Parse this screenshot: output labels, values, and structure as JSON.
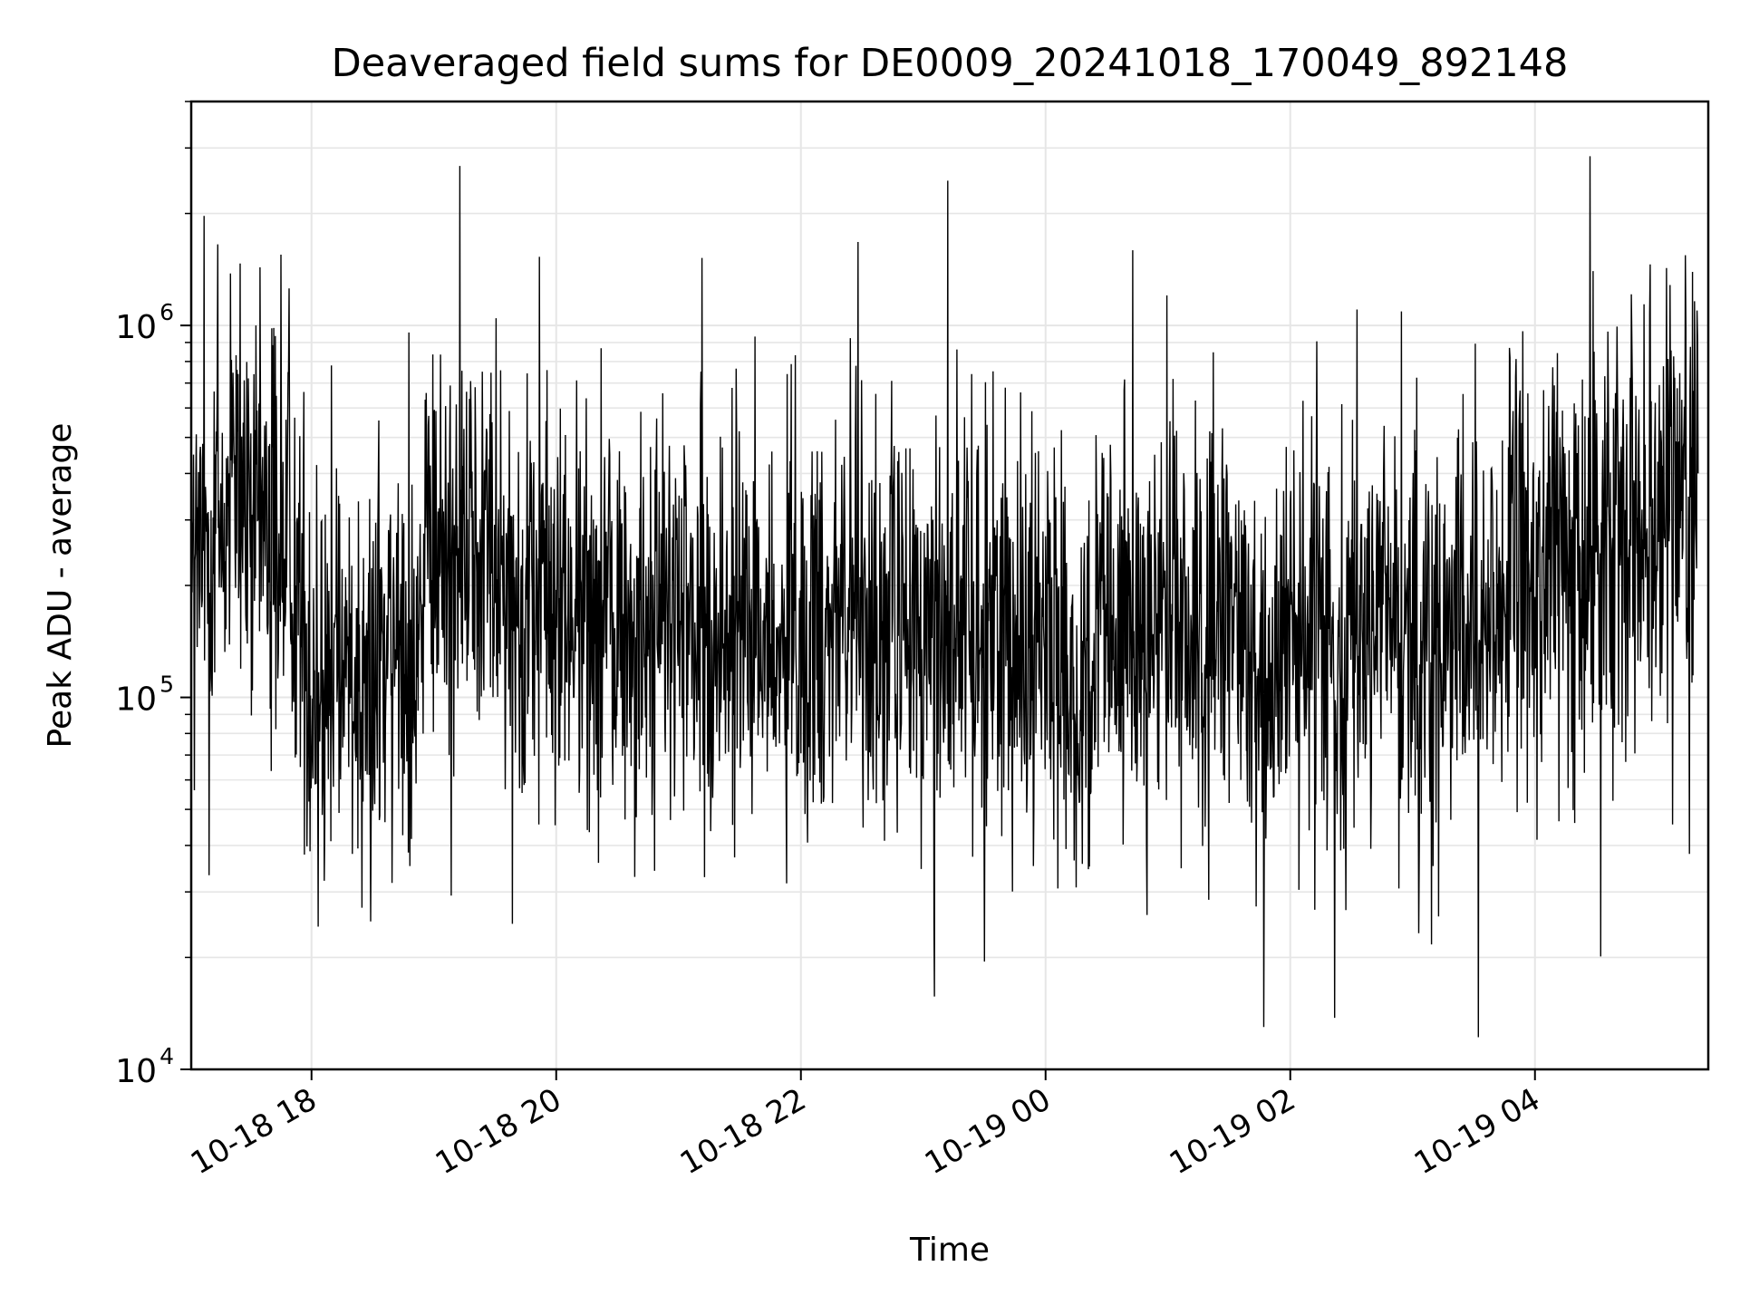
{
  "chart_data": {
    "type": "line",
    "title": "Deaveraged field sums for DE0009_20241018_170049_892148",
    "xlabel": "Time",
    "ylabel": "Peak ADU - average",
    "yscale": "log",
    "grid": true,
    "grid_minor_y": true,
    "line_color": "#000000",
    "grid_color": "#e6e6e6",
    "xlim": [
      "2024-10-18 17:01",
      "2024-10-19 05:25"
    ],
    "ylim": [
      10000,
      4000000
    ],
    "x_ticks": [
      {
        "value": "2024-10-18 18:00",
        "label": "10-18 18"
      },
      {
        "value": "2024-10-18 20:00",
        "label": "10-18 20"
      },
      {
        "value": "2024-10-18 22:00",
        "label": "10-18 22"
      },
      {
        "value": "2024-10-19 00:00",
        "label": "10-19 00"
      },
      {
        "value": "2024-10-19 02:00",
        "label": "10-19 02"
      },
      {
        "value": "2024-10-19 04:00",
        "label": "10-19 04"
      }
    ],
    "y_ticks": [
      {
        "value": 10000,
        "base": "10",
        "exp": "4"
      },
      {
        "value": 100000,
        "base": "10",
        "exp": "5"
      },
      {
        "value": 1000000,
        "base": "10",
        "exp": "6"
      }
    ],
    "series": [
      {
        "x": [
          "2024-10-18 17:01",
          "2024-10-18 17:10",
          "2024-10-18 17:20",
          "2024-10-18 17:30",
          "2024-10-18 17:40",
          "2024-10-18 17:50",
          "2024-10-18 18:00",
          "2024-10-18 18:10",
          "2024-10-18 18:20",
          "2024-10-18 18:30",
          "2024-10-18 18:40",
          "2024-10-18 18:50",
          "2024-10-18 19:00",
          "2024-10-18 19:10",
          "2024-10-18 19:20",
          "2024-10-18 19:30",
          "2024-10-18 19:40",
          "2024-10-18 19:50",
          "2024-10-18 20:00",
          "2024-10-18 20:10",
          "2024-10-18 20:20",
          "2024-10-18 20:30",
          "2024-10-18 20:40",
          "2024-10-18 20:50",
          "2024-10-18 21:00",
          "2024-10-18 21:10",
          "2024-10-18 21:20",
          "2024-10-18 21:30",
          "2024-10-18 21:40",
          "2024-10-18 21:50",
          "2024-10-18 22:00",
          "2024-10-18 22:10",
          "2024-10-18 22:20",
          "2024-10-18 22:30",
          "2024-10-18 22:40",
          "2024-10-18 22:50",
          "2024-10-18 23:00",
          "2024-10-18 23:10",
          "2024-10-18 23:20",
          "2024-10-18 23:30",
          "2024-10-18 23:40",
          "2024-10-18 23:50",
          "2024-10-19 00:00",
          "2024-10-19 00:10",
          "2024-10-19 00:20",
          "2024-10-19 00:30",
          "2024-10-19 00:40",
          "2024-10-19 00:50",
          "2024-10-19 01:00",
          "2024-10-19 01:10",
          "2024-10-19 01:20",
          "2024-10-19 01:30",
          "2024-10-19 01:40",
          "2024-10-19 01:50",
          "2024-10-19 02:00",
          "2024-10-19 02:10",
          "2024-10-19 02:20",
          "2024-10-19 02:30",
          "2024-10-19 02:40",
          "2024-10-19 02:50",
          "2024-10-19 03:00",
          "2024-10-19 03:10",
          "2024-10-19 03:20",
          "2024-10-19 03:30",
          "2024-10-19 03:40",
          "2024-10-19 03:50",
          "2024-10-19 04:00",
          "2024-10-19 04:10",
          "2024-10-19 04:20",
          "2024-10-19 04:30",
          "2024-10-19 04:40",
          "2024-10-19 04:50",
          "2024-10-19 05:00",
          "2024-10-19 05:10",
          "2024-10-19 05:20"
        ],
        "y": [
          210000,
          260000,
          300000,
          280000,
          320000,
          250000,
          110000,
          120000,
          130000,
          115000,
          125000,
          160000,
          230000,
          270000,
          290000,
          260000,
          180000,
          190000,
          175000,
          165000,
          170000,
          160000,
          155000,
          150000,
          160000,
          150000,
          145000,
          160000,
          140000,
          135000,
          150000,
          165000,
          200000,
          170000,
          160000,
          150000,
          155000,
          160000,
          165000,
          170000,
          160000,
          150000,
          145000,
          120000,
          110000,
          140000,
          150000,
          160000,
          155000,
          145000,
          140000,
          150000,
          135000,
          120000,
          130000,
          140000,
          155000,
          160000,
          150000,
          145000,
          140000,
          130000,
          135000,
          150000,
          180000,
          200000,
          220000,
          250000,
          230000,
          270000,
          300000,
          340000,
          360000,
          380000,
          400000
        ]
      }
    ],
    "spikes": [
      {
        "x": "2024-10-18 17:45",
        "y": 1550000
      },
      {
        "x": "2024-10-18 23:12",
        "y": 2450000
      },
      {
        "x": "2024-10-19 04:27",
        "y": 2850000
      },
      {
        "x": "2024-10-18 23:30",
        "y": 19500
      },
      {
        "x": "2024-10-19 01:47",
        "y": 13000
      },
      {
        "x": "2024-10-18 18:29",
        "y": 25000
      }
    ]
  }
}
